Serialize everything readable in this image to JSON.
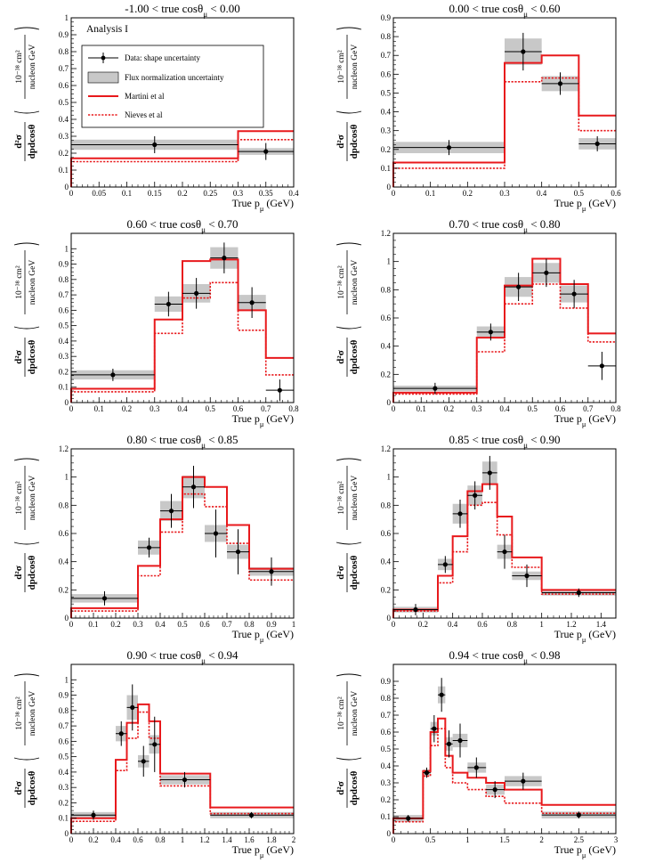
{
  "figure": {
    "analysis_label": "Analysis I",
    "legend": {
      "data": "Data: shape uncertainty",
      "flux": "Flux normalization uncertainty",
      "martini": "Martini et al",
      "nieves": "Nieves et al"
    },
    "y_axis": {
      "numerator": "d²σ",
      "denominator": "dpdcosθ",
      "unit_top": "10⁻³⁸ cm²",
      "unit_bottom": "nucleon GeV"
    },
    "colors": {
      "model": "#e8191c",
      "band": "#c8c8c8",
      "data": "#000000"
    }
  },
  "chart_data": [
    {
      "type": "histogram",
      "title": "-1.00 < true cosθμ < 0.00",
      "xlabel": "True pμ (GeV)",
      "xlim": [
        0,
        0.4
      ],
      "ylim": [
        0,
        1
      ],
      "xticks": [
        0,
        0.05,
        0.1,
        0.15,
        0.2,
        0.25,
        0.3,
        0.35,
        0.4
      ],
      "yticks": [
        0,
        0.1,
        0.2,
        0.3,
        0.4,
        0.5,
        0.6,
        0.7,
        0.8,
        0.9,
        1
      ],
      "bin_edges": [
        0,
        0.3,
        0.4
      ],
      "data": [
        {
          "x": 0.15,
          "y": 0.25,
          "err": 0.05,
          "band": 0.03
        },
        {
          "x": 0.35,
          "y": 0.21,
          "err": 0.05,
          "band": 0.02
        }
      ],
      "martini": [
        0.17,
        0.33
      ],
      "nieves": [
        0.15,
        0.28
      ]
    },
    {
      "type": "histogram",
      "title": "0.00 < true cosθμ < 0.60",
      "xlabel": "True pμ (GeV)",
      "xlim": [
        0,
        0.6
      ],
      "ylim": [
        0,
        0.9
      ],
      "xticks": [
        0,
        0.1,
        0.2,
        0.3,
        0.4,
        0.5,
        0.6
      ],
      "yticks": [
        0,
        0.1,
        0.2,
        0.3,
        0.4,
        0.5,
        0.6,
        0.7,
        0.8,
        0.9
      ],
      "bin_edges": [
        0,
        0.3,
        0.4,
        0.5,
        0.6
      ],
      "data": [
        {
          "x": 0.15,
          "y": 0.21,
          "err": 0.04,
          "band": 0.03
        },
        {
          "x": 0.35,
          "y": 0.72,
          "err": 0.1,
          "band": 0.07
        },
        {
          "x": 0.45,
          "y": 0.55,
          "err": 0.06,
          "band": 0.04
        },
        {
          "x": 0.55,
          "y": 0.23,
          "err": 0.04,
          "band": 0.03
        }
      ],
      "martini": [
        0.13,
        0.66,
        0.7,
        0.38
      ],
      "nieves": [
        0.1,
        0.56,
        0.58,
        0.3
      ]
    },
    {
      "type": "histogram",
      "title": "0.60 < true cosθμ < 0.70",
      "xlabel": "True pμ (GeV)",
      "xlim": [
        0,
        0.8
      ],
      "ylim": [
        0,
        1.1
      ],
      "xticks": [
        0,
        0.1,
        0.2,
        0.3,
        0.4,
        0.5,
        0.6,
        0.7,
        0.8
      ],
      "yticks": [
        0,
        0.1,
        0.2,
        0.3,
        0.4,
        0.5,
        0.6,
        0.7,
        0.8,
        0.9,
        1
      ],
      "bin_edges": [
        0,
        0.3,
        0.4,
        0.5,
        0.6,
        0.7,
        0.8
      ],
      "data": [
        {
          "x": 0.15,
          "y": 0.18,
          "err": 0.04,
          "band": 0.03
        },
        {
          "x": 0.35,
          "y": 0.64,
          "err": 0.08,
          "band": 0.05
        },
        {
          "x": 0.45,
          "y": 0.71,
          "err": 0.1,
          "band": 0.06
        },
        {
          "x": 0.55,
          "y": 0.94,
          "err": 0.1,
          "band": 0.07
        },
        {
          "x": 0.65,
          "y": 0.65,
          "err": 0.1,
          "band": 0.05
        },
        {
          "x": 0.75,
          "y": 0.08,
          "err": 0.07,
          "band": 0
        }
      ],
      "martini": [
        0.09,
        0.54,
        0.92,
        0.93,
        0.6,
        0.29
      ],
      "nieves": [
        0.07,
        0.45,
        0.68,
        0.78,
        0.47,
        0.18
      ]
    },
    {
      "type": "histogram",
      "title": "0.70 < true cosθμ < 0.80",
      "xlabel": "True pμ (GeV)",
      "xlim": [
        0,
        0.8
      ],
      "ylim": [
        0,
        1.2
      ],
      "xticks": [
        0,
        0.1,
        0.2,
        0.3,
        0.4,
        0.5,
        0.6,
        0.7,
        0.8
      ],
      "yticks": [
        0,
        0.2,
        0.4,
        0.6,
        0.8,
        1,
        1.2
      ],
      "bin_edges": [
        0,
        0.3,
        0.4,
        0.5,
        0.6,
        0.7,
        0.8
      ],
      "data": [
        {
          "x": 0.15,
          "y": 0.1,
          "err": 0.04,
          "band": 0.02
        },
        {
          "x": 0.35,
          "y": 0.5,
          "err": 0.06,
          "band": 0.04
        },
        {
          "x": 0.45,
          "y": 0.82,
          "err": 0.1,
          "band": 0.07
        },
        {
          "x": 0.55,
          "y": 0.92,
          "err": 0.1,
          "band": 0.07
        },
        {
          "x": 0.65,
          "y": 0.77,
          "err": 0.1,
          "band": 0.06
        },
        {
          "x": 0.75,
          "y": 0.26,
          "err": 0.1,
          "band": 0
        }
      ],
      "martini": [
        0.07,
        0.46,
        0.83,
        1.02,
        0.84,
        0.49
      ],
      "nieves": [
        0.06,
        0.36,
        0.7,
        0.84,
        0.67,
        0.43
      ]
    },
    {
      "type": "histogram",
      "title": "0.80 < true cosθμ < 0.85",
      "xlabel": "True pμ (GeV)",
      "xlim": [
        0,
        1.0
      ],
      "ylim": [
        0,
        1.2
      ],
      "xticks": [
        0,
        0.1,
        0.2,
        0.3,
        0.4,
        0.5,
        0.6,
        0.7,
        0.8,
        0.9,
        1
      ],
      "yticks": [
        0,
        0.2,
        0.4,
        0.6,
        0.8,
        1,
        1.2
      ],
      "bin_edges": [
        0,
        0.3,
        0.4,
        0.5,
        0.6,
        0.7,
        0.8,
        1.0
      ],
      "data": [
        {
          "x": 0.15,
          "y": 0.14,
          "err": 0.05,
          "band": 0.03
        },
        {
          "x": 0.35,
          "y": 0.5,
          "err": 0.07,
          "band": 0.05
        },
        {
          "x": 0.45,
          "y": 0.76,
          "err": 0.12,
          "band": 0.07
        },
        {
          "x": 0.55,
          "y": 0.93,
          "err": 0.15,
          "band": 0.08
        },
        {
          "x": 0.65,
          "y": 0.6,
          "err": 0.17,
          "band": 0.06
        },
        {
          "x": 0.75,
          "y": 0.47,
          "err": 0.16,
          "band": 0.05
        },
        {
          "x": 0.9,
          "y": 0.33,
          "err": 0.1,
          "band": 0.03
        }
      ],
      "martini": [
        0.07,
        0.37,
        0.7,
        1.0,
        0.93,
        0.66,
        0.35
      ],
      "nieves": [
        0.05,
        0.3,
        0.61,
        0.88,
        0.79,
        0.53,
        0.27
      ]
    },
    {
      "type": "histogram",
      "title": "0.85 < true cosθμ < 0.90",
      "xlabel": "True pμ (GeV)",
      "xlim": [
        0,
        1.5
      ],
      "ylim": [
        0,
        1.2
      ],
      "xticks": [
        0,
        0.2,
        0.4,
        0.6,
        0.8,
        1,
        1.2,
        1.4
      ],
      "yticks": [
        0,
        0.2,
        0.4,
        0.6,
        0.8,
        1,
        1.2
      ],
      "bin_edges": [
        0,
        0.3,
        0.4,
        0.5,
        0.6,
        0.7,
        0.8,
        1.0,
        1.5
      ],
      "data": [
        {
          "x": 0.15,
          "y": 0.06,
          "err": 0.04,
          "band": 0.02
        },
        {
          "x": 0.35,
          "y": 0.38,
          "err": 0.06,
          "band": 0.04
        },
        {
          "x": 0.45,
          "y": 0.74,
          "err": 0.1,
          "band": 0.07
        },
        {
          "x": 0.55,
          "y": 0.87,
          "err": 0.1,
          "band": 0.07
        },
        {
          "x": 0.65,
          "y": 1.03,
          "err": 0.12,
          "band": 0.08
        },
        {
          "x": 0.75,
          "y": 0.47,
          "err": 0.12,
          "band": 0.05
        },
        {
          "x": 0.9,
          "y": 0.3,
          "err": 0.08,
          "band": 0.03
        },
        {
          "x": 1.25,
          "y": 0.18,
          "err": 0.03,
          "band": 0.02
        }
      ],
      "martini": [
        0.06,
        0.3,
        0.58,
        0.9,
        0.95,
        0.72,
        0.43,
        0.2
      ],
      "nieves": [
        0.05,
        0.25,
        0.47,
        0.8,
        0.82,
        0.59,
        0.36,
        0.17
      ]
    },
    {
      "type": "histogram",
      "title": "0.90 < true cosθμ < 0.94",
      "xlabel": "True pμ (GeV)",
      "xlim": [
        0,
        2.0
      ],
      "ylim": [
        0,
        1.1
      ],
      "xticks": [
        0,
        0.2,
        0.4,
        0.6,
        0.8,
        1,
        1.2,
        1.4,
        1.6,
        1.8,
        2
      ],
      "yticks": [
        0,
        0.1,
        0.2,
        0.3,
        0.4,
        0.5,
        0.6,
        0.7,
        0.8,
        0.9,
        1
      ],
      "bin_edges": [
        0,
        0.4,
        0.5,
        0.6,
        0.7,
        0.8,
        1.25,
        2.0
      ],
      "data": [
        {
          "x": 0.2,
          "y": 0.12,
          "err": 0.03,
          "band": 0.02
        },
        {
          "x": 0.45,
          "y": 0.65,
          "err": 0.08,
          "band": 0.05
        },
        {
          "x": 0.55,
          "y": 0.82,
          "err": 0.15,
          "band": 0.08
        },
        {
          "x": 0.65,
          "y": 0.47,
          "err": 0.1,
          "band": 0.04
        },
        {
          "x": 0.75,
          "y": 0.58,
          "err": 0.18,
          "band": 0.06
        },
        {
          "x": 1.02,
          "y": 0.35,
          "err": 0.05,
          "band": 0.03
        },
        {
          "x": 1.62,
          "y": 0.12,
          "err": 0.02,
          "band": 0.02
        }
      ],
      "martini": [
        0.1,
        0.48,
        0.72,
        0.84,
        0.73,
        0.39,
        0.17
      ],
      "nieves": [
        0.08,
        0.41,
        0.62,
        0.79,
        0.62,
        0.31,
        0.13
      ]
    },
    {
      "type": "histogram",
      "title": "0.94 < true cosθμ < 0.98",
      "xlabel": "True pμ (GeV)",
      "xlim": [
        0,
        3.0
      ],
      "ylim": [
        0,
        1.0
      ],
      "xticks": [
        0,
        0.5,
        1,
        1.5,
        2,
        2.5,
        3
      ],
      "yticks": [
        0,
        0.1,
        0.2,
        0.3,
        0.4,
        0.5,
        0.6,
        0.7,
        0.8,
        0.9
      ],
      "bin_edges": [
        0,
        0.4,
        0.5,
        0.6,
        0.7,
        0.8,
        1.0,
        1.25,
        1.5,
        2.0,
        3.0
      ],
      "data": [
        {
          "x": 0.2,
          "y": 0.09,
          "err": 0.02,
          "band": 0.02
        },
        {
          "x": 0.45,
          "y": 0.36,
          "err": 0.03,
          "band": 0.02
        },
        {
          "x": 0.55,
          "y": 0.62,
          "err": 0.08,
          "band": 0.04
        },
        {
          "x": 0.65,
          "y": 0.82,
          "err": 0.1,
          "band": 0.05
        },
        {
          "x": 0.75,
          "y": 0.53,
          "err": 0.08,
          "band": 0.04
        },
        {
          "x": 0.9,
          "y": 0.55,
          "err": 0.1,
          "band": 0.04
        },
        {
          "x": 1.12,
          "y": 0.39,
          "err": 0.06,
          "band": 0.03
        },
        {
          "x": 1.37,
          "y": 0.26,
          "err": 0.05,
          "band": 0.03
        },
        {
          "x": 1.75,
          "y": 0.31,
          "err": 0.05,
          "band": 0.03
        },
        {
          "x": 2.5,
          "y": 0.11,
          "err": 0.02,
          "band": 0.02
        }
      ],
      "martini": [
        0.09,
        0.37,
        0.6,
        0.68,
        0.46,
        0.36,
        0.33,
        0.3,
        0.26,
        0.17
      ],
      "nieves": [
        0.07,
        0.34,
        0.52,
        0.62,
        0.39,
        0.3,
        0.26,
        0.22,
        0.18,
        0.12
      ]
    }
  ]
}
